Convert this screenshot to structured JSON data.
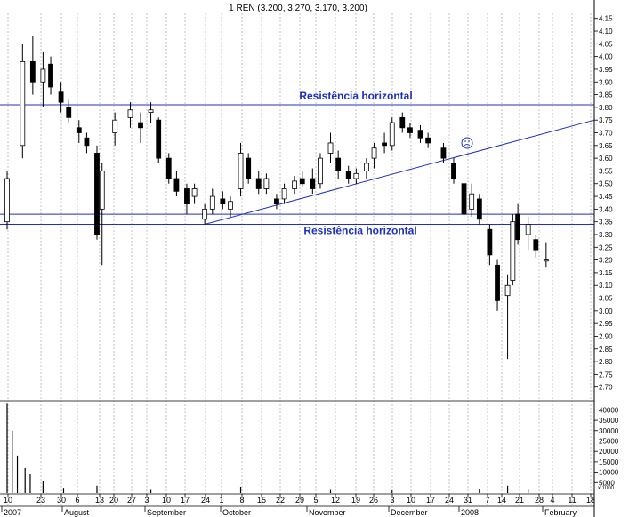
{
  "chart_data": {
    "type": "candlestick",
    "title": "1 REN (3.200, 3.270, 3.170, 3.200)",
    "price_axis": {
      "ylim": [
        2.65,
        4.17
      ],
      "ticks": [
        "4.15",
        "4.10",
        "4.05",
        "4.00",
        "3.95",
        "3.90",
        "3.85",
        "3.80",
        "3.75",
        "3.70",
        "3.65",
        "3.60",
        "3.55",
        "3.50",
        "3.45",
        "3.40",
        "3.35",
        "3.30",
        "3.25",
        "3.20",
        "3.15",
        "3.10",
        "3.05",
        "3.00",
        "2.95",
        "2.90",
        "2.85",
        "2.80",
        "2.75",
        "2.70"
      ]
    },
    "volume_axis": {
      "ylim": [
        0,
        44000
      ],
      "ticks": [
        "40000",
        "35000",
        "30000",
        "25000",
        "20000",
        "15000",
        "10000",
        "5000"
      ],
      "unit_label": "x 1000"
    },
    "x_day_labels": [
      "10",
      "23",
      "30",
      "6",
      "13",
      "20",
      "27",
      "3",
      "10",
      "17",
      "24",
      "1",
      "8",
      "15",
      "22",
      "29",
      "5",
      "12",
      "19",
      "26",
      "3",
      "10",
      "17",
      "24",
      "31",
      "7",
      "14",
      "21",
      "28",
      "4",
      "11",
      "18"
    ],
    "x_month_labels": [
      "2007",
      "August",
      "September",
      "October",
      "November",
      "December",
      "2008",
      "February"
    ],
    "grid": true,
    "annotations": [
      {
        "type": "horizontal_line",
        "value": 3.81,
        "label": "Resistência horizontal"
      },
      {
        "type": "horizontal_line",
        "value": 3.38
      },
      {
        "type": "horizontal_line",
        "value": 3.34,
        "label": "Resistência horizontal"
      },
      {
        "type": "trendline",
        "from": {
          "x": "Sep 24 2007",
          "y": 3.34
        },
        "to": {
          "x": "Feb 18 2008",
          "y": 3.75
        }
      },
      {
        "type": "marker",
        "x": "Jan 2 2008",
        "y": 3.66,
        "symbol": "frown-face"
      }
    ],
    "candles": [
      {
        "date": "2007-07-10",
        "open": 3.35,
        "high": 3.55,
        "low": 3.32,
        "close": 3.52
      },
      {
        "date": "2007-07-16",
        "open": 3.65,
        "high": 4.05,
        "low": 3.6,
        "close": 3.98
      },
      {
        "date": "2007-07-20",
        "open": 3.98,
        "high": 4.08,
        "low": 3.85,
        "close": 3.9
      },
      {
        "date": "2007-07-24",
        "open": 3.9,
        "high": 4.02,
        "low": 3.8,
        "close": 3.95
      },
      {
        "date": "2007-07-27",
        "open": 3.97,
        "high": 4.0,
        "low": 3.85,
        "close": 3.88
      },
      {
        "date": "2007-07-31",
        "open": 3.86,
        "high": 3.9,
        "low": 3.78,
        "close": 3.82
      },
      {
        "date": "2007-08-03",
        "open": 3.8,
        "high": 3.83,
        "low": 3.74,
        "close": 3.76
      },
      {
        "date": "2007-08-07",
        "open": 3.72,
        "high": 3.75,
        "low": 3.66,
        "close": 3.7
      },
      {
        "date": "2007-08-10",
        "open": 3.68,
        "high": 3.7,
        "low": 3.62,
        "close": 3.65
      },
      {
        "date": "2007-08-14",
        "open": 3.62,
        "high": 3.65,
        "low": 3.28,
        "close": 3.3
      },
      {
        "date": "2007-08-16",
        "open": 3.4,
        "high": 3.58,
        "low": 3.18,
        "close": 3.55
      },
      {
        "date": "2007-08-21",
        "open": 3.7,
        "high": 3.78,
        "low": 3.65,
        "close": 3.75
      },
      {
        "date": "2007-08-27",
        "open": 3.76,
        "high": 3.82,
        "low": 3.72,
        "close": 3.79
      },
      {
        "date": "2007-08-31",
        "open": 3.74,
        "high": 3.78,
        "low": 3.66,
        "close": 3.72
      },
      {
        "date": "2007-09-04",
        "open": 3.78,
        "high": 3.82,
        "low": 3.74,
        "close": 3.79
      },
      {
        "date": "2007-09-07",
        "open": 3.75,
        "high": 3.76,
        "low": 3.58,
        "close": 3.6
      },
      {
        "date": "2007-09-11",
        "open": 3.6,
        "high": 3.62,
        "low": 3.5,
        "close": 3.52
      },
      {
        "date": "2007-09-14",
        "open": 3.52,
        "high": 3.55,
        "low": 3.45,
        "close": 3.47
      },
      {
        "date": "2007-09-18",
        "open": 3.48,
        "high": 3.5,
        "low": 3.38,
        "close": 3.42
      },
      {
        "date": "2007-09-21",
        "open": 3.45,
        "high": 3.5,
        "low": 3.42,
        "close": 3.48
      },
      {
        "date": "2007-09-25",
        "open": 3.36,
        "high": 3.42,
        "low": 3.34,
        "close": 3.4
      },
      {
        "date": "2007-09-28",
        "open": 3.4,
        "high": 3.48,
        "low": 3.38,
        "close": 3.45
      },
      {
        "date": "2007-10-02",
        "open": 3.44,
        "high": 3.47,
        "low": 3.4,
        "close": 3.42
      },
      {
        "date": "2007-10-05",
        "open": 3.4,
        "high": 3.45,
        "low": 3.37,
        "close": 3.43
      },
      {
        "date": "2007-10-09",
        "open": 3.48,
        "high": 3.66,
        "low": 3.45,
        "close": 3.62
      },
      {
        "date": "2007-10-12",
        "open": 3.6,
        "high": 3.62,
        "low": 3.5,
        "close": 3.52
      },
      {
        "date": "2007-10-16",
        "open": 3.52,
        "high": 3.55,
        "low": 3.46,
        "close": 3.48
      },
      {
        "date": "2007-10-19",
        "open": 3.48,
        "high": 3.54,
        "low": 3.46,
        "close": 3.52
      },
      {
        "date": "2007-10-23",
        "open": 3.44,
        "high": 3.46,
        "low": 3.4,
        "close": 3.42
      },
      {
        "date": "2007-10-26",
        "open": 3.44,
        "high": 3.5,
        "low": 3.42,
        "close": 3.48
      },
      {
        "date": "2007-10-30",
        "open": 3.48,
        "high": 3.53,
        "low": 3.46,
        "close": 3.51
      },
      {
        "date": "2007-11-02",
        "open": 3.52,
        "high": 3.55,
        "low": 3.49,
        "close": 3.5
      },
      {
        "date": "2007-11-06",
        "open": 3.52,
        "high": 3.56,
        "low": 3.46,
        "close": 3.48
      },
      {
        "date": "2007-11-09",
        "open": 3.5,
        "high": 3.62,
        "low": 3.48,
        "close": 3.6
      },
      {
        "date": "2007-11-13",
        "open": 3.62,
        "high": 3.7,
        "low": 3.58,
        "close": 3.66
      },
      {
        "date": "2007-11-16",
        "open": 3.6,
        "high": 3.63,
        "low": 3.52,
        "close": 3.55
      },
      {
        "date": "2007-11-20",
        "open": 3.55,
        "high": 3.57,
        "low": 3.5,
        "close": 3.52
      },
      {
        "date": "2007-11-23",
        "open": 3.52,
        "high": 3.56,
        "low": 3.5,
        "close": 3.54
      },
      {
        "date": "2007-11-27",
        "open": 3.55,
        "high": 3.6,
        "low": 3.52,
        "close": 3.58
      },
      {
        "date": "2007-11-30",
        "open": 3.6,
        "high": 3.66,
        "low": 3.56,
        "close": 3.64
      },
      {
        "date": "2007-12-04",
        "open": 3.66,
        "high": 3.7,
        "low": 3.62,
        "close": 3.65
      },
      {
        "date": "2007-12-07",
        "open": 3.65,
        "high": 3.76,
        "low": 3.63,
        "close": 3.74
      },
      {
        "date": "2007-12-11",
        "open": 3.76,
        "high": 3.78,
        "low": 3.7,
        "close": 3.72
      },
      {
        "date": "2007-12-14",
        "open": 3.72,
        "high": 3.74,
        "low": 3.68,
        "close": 3.7
      },
      {
        "date": "2007-12-18",
        "open": 3.71,
        "high": 3.73,
        "low": 3.66,
        "close": 3.68
      },
      {
        "date": "2007-12-21",
        "open": 3.68,
        "high": 3.7,
        "low": 3.64,
        "close": 3.66
      },
      {
        "date": "2007-12-27",
        "open": 3.64,
        "high": 3.66,
        "low": 3.58,
        "close": 3.6
      },
      {
        "date": "2007-12-31",
        "open": 3.58,
        "high": 3.6,
        "low": 3.5,
        "close": 3.52
      },
      {
        "date": "2008-01-04",
        "open": 3.5,
        "high": 3.52,
        "low": 3.36,
        "close": 3.38
      },
      {
        "date": "2008-01-07",
        "open": 3.4,
        "high": 3.5,
        "low": 3.37,
        "close": 3.46
      },
      {
        "date": "2008-01-10",
        "open": 3.44,
        "high": 3.46,
        "low": 3.34,
        "close": 3.36
      },
      {
        "date": "2008-01-14",
        "open": 3.32,
        "high": 3.34,
        "low": 3.18,
        "close": 3.22
      },
      {
        "date": "2008-01-17",
        "open": 3.18,
        "high": 3.2,
        "low": 3.0,
        "close": 3.04
      },
      {
        "date": "2008-01-21",
        "open": 3.06,
        "high": 3.14,
        "low": 2.81,
        "close": 3.1
      },
      {
        "date": "2008-01-23",
        "open": 3.12,
        "high": 3.38,
        "low": 3.1,
        "close": 3.35
      },
      {
        "date": "2008-01-25",
        "open": 3.38,
        "high": 3.42,
        "low": 3.26,
        "close": 3.28
      },
      {
        "date": "2008-01-29",
        "open": 3.3,
        "high": 3.37,
        "low": 3.24,
        "close": 3.34
      },
      {
        "date": "2008-02-01",
        "open": 3.28,
        "high": 3.3,
        "low": 3.21,
        "close": 3.24
      },
      {
        "date": "2008-02-05",
        "open": 3.2,
        "high": 3.27,
        "low": 3.17,
        "close": 3.2
      }
    ],
    "volume": [
      {
        "date": "2007-07-10",
        "value": 43000
      },
      {
        "date": "2007-07-12",
        "value": 30000
      },
      {
        "date": "2007-07-14",
        "value": 18000
      },
      {
        "date": "2007-07-17",
        "value": 12000
      },
      {
        "date": "2007-07-19",
        "value": 9000
      },
      {
        "date": "2007-07-24",
        "value": 6000
      },
      {
        "date": "2007-08-01",
        "value": 2500
      },
      {
        "date": "2007-08-14",
        "value": 3500
      },
      {
        "date": "2007-09-04",
        "value": 1500
      },
      {
        "date": "2007-10-09",
        "value": 3000
      },
      {
        "date": "2007-11-13",
        "value": 1500
      },
      {
        "date": "2007-12-07",
        "value": 1200
      },
      {
        "date": "2008-01-10",
        "value": 2000
      },
      {
        "date": "2008-01-21",
        "value": 3500
      },
      {
        "date": "2008-01-29",
        "value": 2000
      }
    ]
  }
}
